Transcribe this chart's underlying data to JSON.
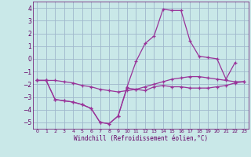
{
  "xlabel": "Windchill (Refroidissement éolien,°C)",
  "xlim": [
    -0.5,
    23.5
  ],
  "ylim": [
    -5.5,
    4.5
  ],
  "xticks": [
    0,
    1,
    2,
    3,
    4,
    5,
    6,
    7,
    8,
    9,
    10,
    11,
    12,
    13,
    14,
    15,
    16,
    17,
    18,
    19,
    20,
    21,
    22,
    23
  ],
  "yticks": [
    -5,
    -4,
    -3,
    -2,
    -1,
    0,
    1,
    2,
    3,
    4
  ],
  "bg_color": "#c9e8e8",
  "grid_color": "#a0b8cc",
  "line_color": "#993399",
  "line1_x": [
    0,
    1,
    2,
    3,
    4,
    5,
    6,
    7,
    8,
    9,
    10,
    11,
    12,
    13,
    14,
    15,
    16,
    17,
    18,
    19,
    20,
    21,
    22,
    23
  ],
  "line1_y": [
    -1.7,
    -1.7,
    -1.7,
    -1.8,
    -1.9,
    -2.1,
    -2.2,
    -2.4,
    -2.5,
    -2.6,
    -2.5,
    -2.4,
    -2.2,
    -2.0,
    -1.8,
    -1.6,
    -1.5,
    -1.4,
    -1.4,
    -1.5,
    -1.6,
    -1.7,
    -1.8,
    -1.8
  ],
  "line2_x": [
    0,
    1,
    2,
    3,
    4,
    5,
    6,
    7,
    8,
    9,
    10,
    11,
    12,
    13,
    14,
    15,
    16,
    17,
    18,
    19,
    20,
    21,
    22,
    23
  ],
  "line2_y": [
    -1.7,
    -1.7,
    -3.2,
    -3.3,
    -3.4,
    -3.6,
    -3.9,
    -5.0,
    -5.1,
    -4.5,
    -2.3,
    -2.4,
    -2.5,
    -2.2,
    -2.1,
    -2.2,
    -2.2,
    -2.3,
    -2.3,
    -2.3,
    -2.2,
    -2.1,
    -1.9,
    -1.8
  ],
  "line3_x": [
    0,
    1,
    2,
    3,
    4,
    5,
    6,
    7,
    8,
    9,
    10,
    11,
    12,
    13,
    14,
    15,
    16,
    17,
    18,
    19,
    20,
    21,
    22
  ],
  "line3_y": [
    -1.7,
    -1.7,
    -3.2,
    -3.3,
    -3.4,
    -3.6,
    -3.9,
    -5.0,
    -5.1,
    -4.5,
    -2.2,
    -0.2,
    1.2,
    1.8,
    3.9,
    3.8,
    3.8,
    1.4,
    0.2,
    0.1,
    0.0,
    -1.6,
    -0.3
  ]
}
